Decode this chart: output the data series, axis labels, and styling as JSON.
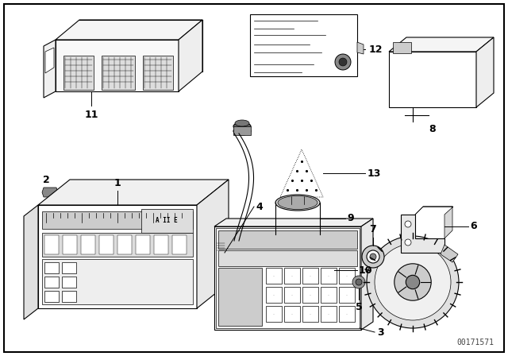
{
  "bg_color": "#ffffff",
  "border_color": "#000000",
  "line_color": "#000000",
  "figure_width": 6.4,
  "figure_height": 4.48,
  "dpi": 100,
  "watermark": "00171571",
  "lw_thick": 1.2,
  "lw_med": 0.8,
  "lw_thin": 0.5,
  "label_fontsize": 9,
  "anno_fontsize": 8
}
